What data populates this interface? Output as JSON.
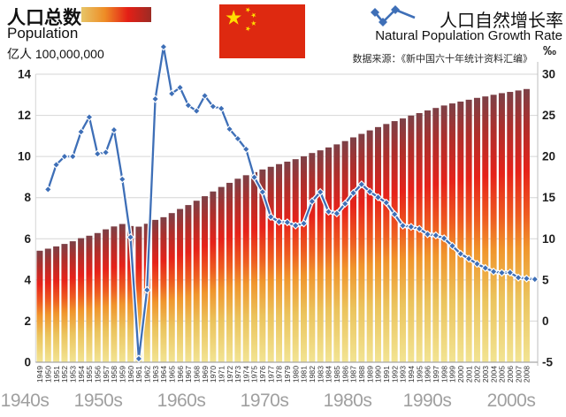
{
  "header": {
    "left": {
      "title_zh": "人口总数",
      "title_en": "Population",
      "unit": "亿人 100,000,000"
    },
    "right": {
      "title_zh": "人口自然增长率",
      "title_en": "Natural Population Growth Rate",
      "source": "数据来源：《新中国六十年统计资料汇编》",
      "unit": "‰"
    }
  },
  "colors": {
    "bar_gradient_top_to_bottom": [
      "#7C4147",
      "#AD2F2C",
      "#E6221A",
      "#EE5B20",
      "#F0952C",
      "#EBC35C",
      "#F2E493"
    ],
    "legend_swatch_left_to_right": [
      "#E7C568",
      "#EE8D26",
      "#E41F16",
      "#9C2B24"
    ],
    "line": "#3E6FB7",
    "line_halo": "#FFFFFF",
    "gridline": "#D6D6D6",
    "axis_line": "#A6A6A6",
    "axis_text": "#1F1F1F",
    "decade_text": "#A0A0A0",
    "flag_red": "#DE2910",
    "flag_yellow": "#FFDE00"
  },
  "chart_data": {
    "type": "bar",
    "title": "人口总数 Population / 人口自然增长率 Natural Population Growth Rate",
    "categories": [
      1949,
      1950,
      1951,
      1952,
      1953,
      1954,
      1955,
      1956,
      1957,
      1958,
      1959,
      1960,
      1961,
      1962,
      1963,
      1964,
      1965,
      1966,
      1967,
      1968,
      1969,
      1970,
      1971,
      1972,
      1973,
      1974,
      1975,
      1976,
      1977,
      1978,
      1979,
      1980,
      1981,
      1982,
      1983,
      1984,
      1985,
      1986,
      1987,
      1988,
      1989,
      1990,
      1991,
      1992,
      1993,
      1994,
      1995,
      1996,
      1997,
      1998,
      1999,
      2000,
      2001,
      2002,
      2003,
      2004,
      2005,
      2006,
      2007,
      2008
    ],
    "series": [
      {
        "name": "人口总数 Population",
        "type": "bar",
        "axis": "left",
        "unit": "亿人 100,000,000",
        "values": [
          5.42,
          5.52,
          5.63,
          5.75,
          5.88,
          6.03,
          6.15,
          6.28,
          6.46,
          6.6,
          6.72,
          6.62,
          6.59,
          6.73,
          6.92,
          7.05,
          7.25,
          7.45,
          7.64,
          7.85,
          8.07,
          8.3,
          8.52,
          8.72,
          8.92,
          9.09,
          9.24,
          9.37,
          9.5,
          9.63,
          9.75,
          9.87,
          10.01,
          10.17,
          10.3,
          10.44,
          10.59,
          10.75,
          10.93,
          11.1,
          11.27,
          11.43,
          11.58,
          11.72,
          11.85,
          11.99,
          12.11,
          12.24,
          12.36,
          12.48,
          12.58,
          12.67,
          12.76,
          12.85,
          12.92,
          13.0,
          13.08,
          13.14,
          13.21,
          13.28
        ]
      },
      {
        "name": "人口自然增长率 Natural Population Growth Rate",
        "type": "line",
        "axis": "right",
        "unit": "‰",
        "values": [
          16.0,
          19.0,
          20.0,
          20.0,
          23.0,
          24.79,
          20.32,
          20.5,
          23.23,
          17.24,
          10.19,
          -4.57,
          3.78,
          26.99,
          33.33,
          27.64,
          28.38,
          26.22,
          25.53,
          27.38,
          26.08,
          25.83,
          23.33,
          22.16,
          20.89,
          17.48,
          15.69,
          12.66,
          12.06,
          12.0,
          11.61,
          11.87,
          14.55,
          15.68,
          13.29,
          13.08,
          14.26,
          15.57,
          16.61,
          15.73,
          15.04,
          14.39,
          12.98,
          11.6,
          11.45,
          11.21,
          10.55,
          10.42,
          10.06,
          9.14,
          8.18,
          7.58,
          6.95,
          6.45,
          6.01,
          5.87,
          5.89,
          5.28,
          5.17,
          5.08
        ]
      }
    ],
    "left_axis": {
      "label": "亿人 100,000,000",
      "range": [
        0,
        14
      ],
      "ticks": [
        0,
        2,
        4,
        6,
        8,
        10,
        12,
        14
      ]
    },
    "right_axis": {
      "label": "‰",
      "range": [
        -5,
        30
      ],
      "ticks": [
        -5,
        0,
        5,
        10,
        15,
        20,
        25,
        30
      ]
    },
    "decade_labels": [
      "1940s",
      "1950s",
      "1960s",
      "1970s",
      "1980s",
      "1990s",
      "2000s"
    ],
    "grid": true,
    "legend_position": "top"
  }
}
